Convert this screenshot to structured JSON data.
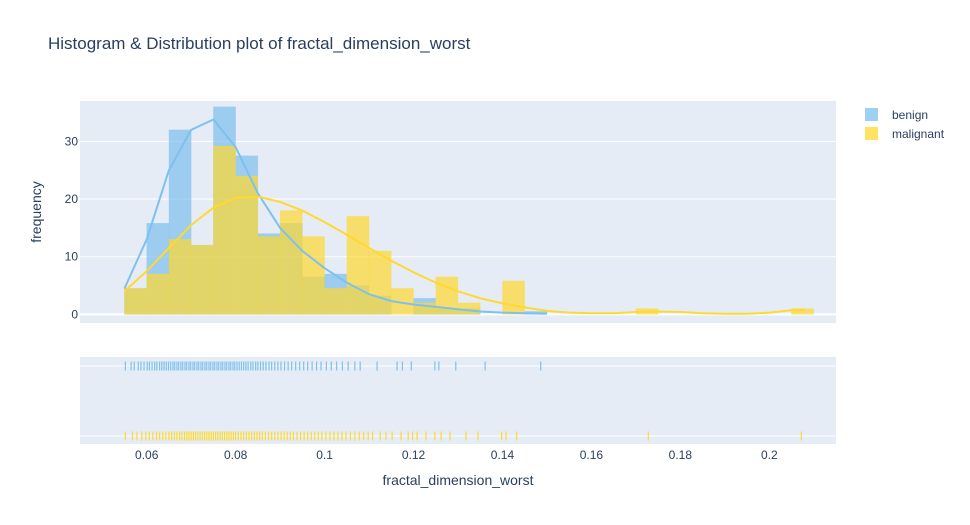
{
  "chart_data": {
    "type": "bar",
    "title": "Histogram & Distribution plot of fractal_dimension_worst",
    "xlabel": "fractal_dimension_worst",
    "ylabel": "frequency",
    "xlim": [
      0.045,
      0.215
    ],
    "ylim": [
      -1.5,
      37
    ],
    "grid": true,
    "legend_position": "top-right",
    "x_ticks": [
      0.06,
      0.08,
      0.1,
      0.12,
      0.14,
      0.16,
      0.18,
      0.2
    ],
    "y_ticks": [
      0,
      10,
      20,
      30
    ],
    "bin_width": 0.005,
    "series": [
      {
        "name": "benign",
        "color": "#7ec0ee",
        "bins": [
          {
            "x0": 0.055,
            "value": 4.5
          },
          {
            "x0": 0.06,
            "value": 15.8
          },
          {
            "x0": 0.065,
            "value": 32.0
          },
          {
            "x0": 0.07,
            "value": 12.0
          },
          {
            "x0": 0.075,
            "value": 36.0
          },
          {
            "x0": 0.08,
            "value": 27.5
          },
          {
            "x0": 0.085,
            "value": 14.0
          },
          {
            "x0": 0.09,
            "value": 15.8
          },
          {
            "x0": 0.095,
            "value": 6.5
          },
          {
            "x0": 0.1,
            "value": 7.0
          },
          {
            "x0": 0.105,
            "value": 5.0
          },
          {
            "x0": 0.11,
            "value": 3.2
          },
          {
            "x0": 0.115,
            "value": 0.0
          },
          {
            "x0": 0.12,
            "value": 2.8
          },
          {
            "x0": 0.125,
            "value": 1.0
          },
          {
            "x0": 0.13,
            "value": 1.0
          },
          {
            "x0": 0.135,
            "value": 0.0
          },
          {
            "x0": 0.14,
            "value": 0.0
          },
          {
            "x0": 0.145,
            "value": 0.5
          }
        ],
        "curve": [
          [
            0.055,
            4.5
          ],
          [
            0.06,
            13
          ],
          [
            0.065,
            25
          ],
          [
            0.07,
            32
          ],
          [
            0.075,
            33.8
          ],
          [
            0.08,
            29
          ],
          [
            0.085,
            21
          ],
          [
            0.09,
            15
          ],
          [
            0.095,
            11
          ],
          [
            0.1,
            8
          ],
          [
            0.105,
            5.5
          ],
          [
            0.11,
            3.5
          ],
          [
            0.115,
            2.3
          ],
          [
            0.12,
            1.7
          ],
          [
            0.125,
            1.3
          ],
          [
            0.13,
            0.9
          ],
          [
            0.135,
            0.5
          ],
          [
            0.14,
            0.3
          ],
          [
            0.145,
            0.2
          ],
          [
            0.15,
            0.1
          ]
        ],
        "rugs": [
          0.0552,
          0.0565,
          0.0572,
          0.0581,
          0.0587,
          0.0594,
          0.0601,
          0.0606,
          0.0612,
          0.0618,
          0.0623,
          0.0629,
          0.0634,
          0.0639,
          0.0644,
          0.0649,
          0.0654,
          0.0659,
          0.0663,
          0.0668,
          0.0672,
          0.0677,
          0.0681,
          0.0686,
          0.069,
          0.0695,
          0.0699,
          0.0704,
          0.0708,
          0.0713,
          0.0717,
          0.0722,
          0.0726,
          0.0731,
          0.0735,
          0.074,
          0.0744,
          0.0749,
          0.0753,
          0.0758,
          0.0762,
          0.0767,
          0.0771,
          0.0776,
          0.078,
          0.0785,
          0.0789,
          0.0794,
          0.0798,
          0.0803,
          0.0808,
          0.0813,
          0.0818,
          0.0823,
          0.0828,
          0.0834,
          0.0839,
          0.0845,
          0.085,
          0.0856,
          0.0862,
          0.0868,
          0.0875,
          0.0881,
          0.0888,
          0.0895,
          0.0902,
          0.091,
          0.0918,
          0.0926,
          0.0935,
          0.0944,
          0.0953,
          0.0962,
          0.0972,
          0.0982,
          0.0992,
          0.1004,
          0.1015,
          0.1027,
          0.104,
          0.1053,
          0.1068,
          0.108,
          0.1118,
          0.1163,
          0.1175,
          0.1195,
          0.1248,
          0.1257,
          0.1295,
          0.1361,
          0.1486
        ]
      },
      {
        "name": "malignant",
        "color": "#ffd92f",
        "bins": [
          {
            "x0": 0.055,
            "value": 4.5
          },
          {
            "x0": 0.06,
            "value": 7.0
          },
          {
            "x0": 0.065,
            "value": 13.0
          },
          {
            "x0": 0.07,
            "value": 12.0
          },
          {
            "x0": 0.075,
            "value": 29.2
          },
          {
            "x0": 0.08,
            "value": 24.0
          },
          {
            "x0": 0.085,
            "value": 13.5
          },
          {
            "x0": 0.09,
            "value": 18.0
          },
          {
            "x0": 0.095,
            "value": 13.5
          },
          {
            "x0": 0.1,
            "value": 4.5
          },
          {
            "x0": 0.105,
            "value": 17.0
          },
          {
            "x0": 0.11,
            "value": 11.0
          },
          {
            "x0": 0.115,
            "value": 4.5
          },
          {
            "x0": 0.12,
            "value": 2.0
          },
          {
            "x0": 0.125,
            "value": 6.5
          },
          {
            "x0": 0.13,
            "value": 2.0
          },
          {
            "x0": 0.135,
            "value": 0.0
          },
          {
            "x0": 0.14,
            "value": 5.8
          },
          {
            "x0": 0.145,
            "value": 0.0
          },
          {
            "x0": 0.15,
            "value": 0.0
          },
          {
            "x0": 0.155,
            "value": 0.0
          },
          {
            "x0": 0.16,
            "value": 0.0
          },
          {
            "x0": 0.165,
            "value": 0.0
          },
          {
            "x0": 0.17,
            "value": 1.0
          },
          {
            "x0": 0.175,
            "value": 0.0
          },
          {
            "x0": 0.18,
            "value": 0.0
          },
          {
            "x0": 0.185,
            "value": 0.0
          },
          {
            "x0": 0.19,
            "value": 0.0
          },
          {
            "x0": 0.195,
            "value": 0.0
          },
          {
            "x0": 0.2,
            "value": 0.0
          },
          {
            "x0": 0.205,
            "value": 1.0
          }
        ],
        "curve": [
          [
            0.055,
            4.0
          ],
          [
            0.06,
            7.5
          ],
          [
            0.065,
            11.5
          ],
          [
            0.07,
            15.5
          ],
          [
            0.075,
            18.5
          ],
          [
            0.08,
            20.2
          ],
          [
            0.085,
            20.4
          ],
          [
            0.09,
            19.5
          ],
          [
            0.095,
            18
          ],
          [
            0.1,
            16
          ],
          [
            0.105,
            13.8
          ],
          [
            0.11,
            11.5
          ],
          [
            0.115,
            9.3
          ],
          [
            0.12,
            7.3
          ],
          [
            0.125,
            5.5
          ],
          [
            0.13,
            4
          ],
          [
            0.135,
            2.8
          ],
          [
            0.14,
            1.9
          ],
          [
            0.145,
            1.2
          ],
          [
            0.15,
            0.6
          ],
          [
            0.155,
            0.3
          ],
          [
            0.16,
            0.2
          ],
          [
            0.165,
            0.2
          ],
          [
            0.17,
            0.4
          ],
          [
            0.175,
            0.5
          ],
          [
            0.18,
            0.4
          ],
          [
            0.185,
            0.2
          ],
          [
            0.19,
            0.1
          ],
          [
            0.195,
            0.1
          ],
          [
            0.2,
            0.3
          ],
          [
            0.205,
            0.7
          ],
          [
            0.208,
            0.8
          ]
        ],
        "rugs": [
          0.0552,
          0.0568,
          0.0578,
          0.0589,
          0.0598,
          0.0606,
          0.0614,
          0.0622,
          0.0629,
          0.0636,
          0.0643,
          0.065,
          0.0656,
          0.0662,
          0.0668,
          0.0674,
          0.0679,
          0.0685,
          0.069,
          0.0695,
          0.07,
          0.0705,
          0.071,
          0.0715,
          0.072,
          0.0725,
          0.073,
          0.0735,
          0.074,
          0.0745,
          0.075,
          0.0755,
          0.076,
          0.0765,
          0.077,
          0.0775,
          0.078,
          0.0785,
          0.079,
          0.0795,
          0.08,
          0.0806,
          0.0812,
          0.0818,
          0.0824,
          0.083,
          0.0836,
          0.0842,
          0.0848,
          0.0854,
          0.086,
          0.0867,
          0.0874,
          0.0881,
          0.0888,
          0.0895,
          0.0902,
          0.0909,
          0.0916,
          0.0923,
          0.093,
          0.0938,
          0.0946,
          0.0954,
          0.0962,
          0.097,
          0.0978,
          0.0986,
          0.0994,
          0.1003,
          0.1012,
          0.1021,
          0.103,
          0.1039,
          0.1048,
          0.1058,
          0.1068,
          0.1078,
          0.1088,
          0.1098,
          0.1108,
          0.1125,
          0.1138,
          0.1152,
          0.1172,
          0.1188,
          0.1198,
          0.1208,
          0.1228,
          0.1248,
          0.1262,
          0.1282,
          0.1318,
          0.1345,
          0.1398,
          0.1408,
          0.1432,
          0.1728,
          0.2072
        ]
      }
    ]
  }
}
